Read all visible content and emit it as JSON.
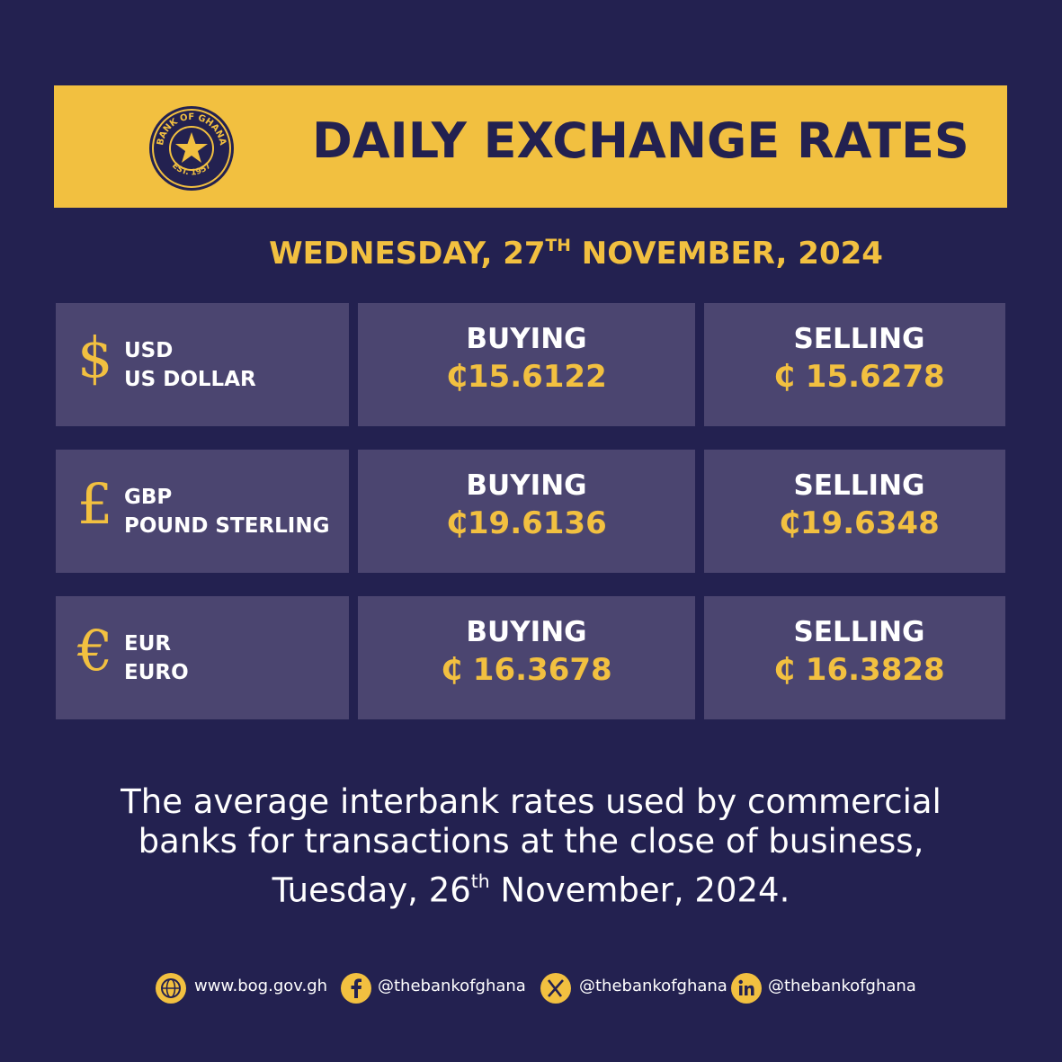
{
  "header": {
    "title": "DAILY EXCHANGE RATES",
    "logo_top": "BANK OF GHANA",
    "logo_bottom": "EST. 1957"
  },
  "date": {
    "before": "WEDNESDAY, 27",
    "sup": "TH",
    "after": " NOVEMBER, 2024"
  },
  "rates": [
    {
      "symbol": "$",
      "code": "USD",
      "name": "US DOLLAR",
      "buying_label": "BUYING",
      "buying": "₵15.6122",
      "selling_label": "SELLING",
      "selling": "₵ 15.6278"
    },
    {
      "symbol": "£",
      "code": "GBP",
      "name": "POUND STERLING",
      "buying_label": "BUYING",
      "buying": "₵19.6136",
      "selling_label": "SELLING",
      "selling": "₵19.6348"
    },
    {
      "symbol": "€",
      "code": "EUR",
      "name": "EURO",
      "buying_label": "BUYING",
      "buying": "₵ 16.3678",
      "selling_label": "SELLING",
      "selling": "₵ 16.3828"
    }
  ],
  "note": {
    "line1": "The average interbank rates used by commercial",
    "line2": "banks for transactions at the close of business,",
    "line3_before": "Tuesday, 26",
    "line3_sup": "th",
    "line3_after": " November, 2024."
  },
  "footer": {
    "website": "www.bog.gov.gh",
    "facebook": "@thebankofghana",
    "x": "@thebankofghana",
    "linkedin": "@thebankofghana"
  }
}
